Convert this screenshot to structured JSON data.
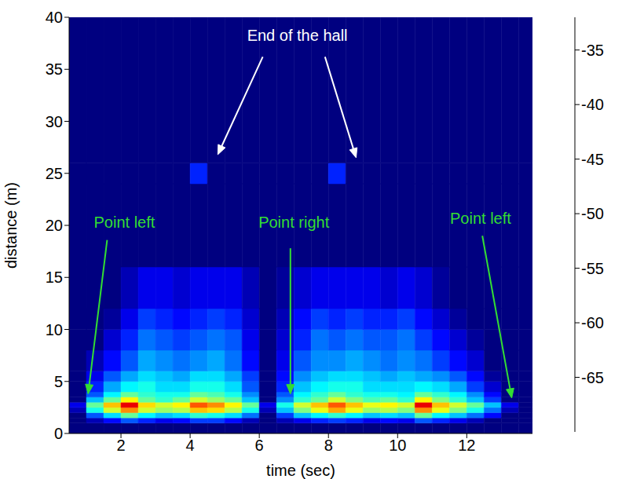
{
  "chart_data": {
    "type": "heatmap",
    "x_label": "time (sec)",
    "y_label": "distance (m)",
    "xlim": [
      0.5,
      13.9
    ],
    "xticks": [
      2,
      4,
      6,
      8,
      10,
      12
    ],
    "ylim": [
      0,
      40
    ],
    "yticks": [
      0,
      5,
      10,
      15,
      20,
      25,
      30,
      35,
      40
    ],
    "time_edges": [
      0.5,
      1,
      1.5,
      2,
      2.5,
      3,
      3.5,
      4,
      4.5,
      5,
      5.5,
      6,
      6.5,
      7,
      7.5,
      8,
      8.5,
      9,
      9.5,
      10,
      10.5,
      11,
      11.5,
      12,
      12.5,
      13,
      13.5,
      14
    ],
    "distance_edges": [
      0,
      1,
      1.5,
      2,
      2.5,
      3,
      3.5,
      4,
      5,
      6,
      8,
      10,
      12,
      16,
      24,
      26,
      40
    ],
    "cells": [
      [
        -70,
        -70,
        -70,
        -70,
        -70,
        -70,
        -70,
        -70,
        -70,
        -70,
        -70,
        -70,
        -70,
        -70,
        -70,
        -70,
        -70,
        -70,
        -70,
        -70,
        -70,
        -70,
        -70,
        -70,
        -70,
        -70,
        -70
      ],
      [
        -70,
        -68,
        -65,
        -62,
        -64,
        -66,
        -65,
        -63,
        -63,
        -65,
        -68,
        -70,
        -68,
        -66,
        -64,
        -63,
        -64,
        -66,
        -65,
        -66,
        -62,
        -64,
        -66,
        -68,
        -70,
        -70,
        -70
      ],
      [
        -70,
        -62,
        -57,
        -52,
        -56,
        -58,
        -57,
        -54,
        -55,
        -57,
        -61,
        -70,
        -63,
        -58,
        -56,
        -54,
        -56,
        -58,
        -57,
        -58,
        -52,
        -56,
        -58,
        -61,
        -65,
        -70,
        -70
      ],
      [
        -68,
        -55,
        -48,
        -42,
        -48,
        -50,
        -49,
        -44,
        -45,
        -49,
        -55,
        -68,
        -58,
        -51,
        -47,
        -43,
        -47,
        -50,
        -49,
        -51,
        -42,
        -47,
        -51,
        -55,
        -61,
        -68,
        -70
      ],
      [
        -66,
        -52,
        -44,
        -36,
        -45,
        -48,
        -46,
        -40,
        -42,
        -46,
        -52,
        -66,
        -55,
        -48,
        -44,
        -40,
        -44,
        -47,
        -46,
        -48,
        -36,
        -44,
        -48,
        -52,
        -58,
        -66,
        -70
      ],
      [
        -70,
        -58,
        -52,
        -46,
        -52,
        -54,
        -52,
        -48,
        -50,
        -52,
        -58,
        -70,
        -60,
        -54,
        -52,
        -48,
        -51,
        -53,
        -52,
        -54,
        -46,
        -51,
        -54,
        -58,
        -63,
        -70,
        -70
      ],
      [
        -70,
        -62,
        -56,
        -52,
        -54,
        -55,
        -55,
        -52,
        -53,
        -55,
        -60,
        -70,
        -62,
        -56,
        -54,
        -52,
        -54,
        -55,
        -55,
        -56,
        -52,
        -54,
        -56,
        -60,
        -65,
        -70,
        -70
      ],
      [
        -70,
        -64,
        -59,
        -56,
        -55,
        -57,
        -57,
        -55,
        -55,
        -57,
        -62,
        -70,
        -64,
        -58,
        -56,
        -55,
        -55,
        -57,
        -57,
        -57,
        -56,
        -57,
        -59,
        -63,
        -67,
        -70,
        -70
      ],
      [
        -70,
        -66,
        -62,
        -59,
        -57,
        -58,
        -59,
        -57,
        -57,
        -59,
        -63,
        -70,
        -65,
        -60,
        -58,
        -57,
        -57,
        -58,
        -59,
        -58,
        -59,
        -60,
        -62,
        -65,
        -69,
        -70,
        -70
      ],
      [
        -70,
        -68,
        -65,
        -62,
        -59,
        -60,
        -61,
        -60,
        -59,
        -61,
        -65,
        -70,
        -66,
        -62,
        -60,
        -60,
        -59,
        -60,
        -61,
        -60,
        -61,
        -63,
        -65,
        -67,
        -70,
        -70,
        -70
      ],
      [
        -70,
        -70,
        -67,
        -64,
        -61,
        -62,
        -63,
        -62,
        -61,
        -62,
        -66,
        -70,
        -67,
        -64,
        -61,
        -62,
        -61,
        -62,
        -62,
        -61,
        -63,
        -65,
        -67,
        -69,
        -70,
        -70,
        -70
      ],
      [
        -70,
        -70,
        -69,
        -66,
        -63,
        -64,
        -65,
        -64,
        -63,
        -64,
        -67,
        -70,
        -68,
        -65,
        -63,
        -64,
        -63,
        -64,
        -64,
        -63,
        -65,
        -67,
        -69,
        -70,
        -70,
        -70,
        -70
      ],
      [
        -70,
        -70,
        -70,
        -68,
        -66,
        -66,
        -67,
        -66,
        -66,
        -66,
        -68,
        -70,
        -69,
        -67,
        -66,
        -66,
        -66,
        -66,
        -67,
        -66,
        -67,
        -69,
        -70,
        -70,
        -70,
        -70,
        -70
      ],
      [
        -70,
        -70,
        -70,
        -70,
        -70,
        -70,
        -70,
        -70,
        -70,
        -70,
        -70,
        -70,
        -70,
        -70,
        -70,
        -70,
        -70,
        -70,
        -70,
        -70,
        -70,
        -70,
        -70,
        -70,
        -70,
        -70,
        -70
      ],
      [
        -70,
        -70,
        -70,
        -70,
        -70,
        -70,
        -70,
        -64,
        -70,
        -70,
        -70,
        -70,
        -70,
        -70,
        -70,
        -64,
        -70,
        -70,
        -70,
        -70,
        -70,
        -70,
        -70,
        -70,
        -70,
        -70,
        -70
      ],
      [
        -70,
        -70,
        -70,
        -70,
        -70,
        -70,
        -70,
        -70,
        -70,
        -70,
        -70,
        -70,
        -70,
        -70,
        -70,
        -70,
        -70,
        -70,
        -70,
        -70,
        -70,
        -70,
        -70,
        -70,
        -70,
        -70,
        -70
      ]
    ],
    "colorbar": {
      "range": [
        -70,
        -32
      ],
      "ticks": [
        -65,
        -60,
        -55,
        -50,
        -45,
        -40,
        -35
      ]
    },
    "annotations": [
      {
        "text": "End of the hall",
        "color": "#ffffff",
        "x": 7.1,
        "y": 38.3,
        "arrows": [
          [
            6.1,
            36.2,
            4.8,
            26.8
          ],
          [
            7.9,
            36.2,
            8.8,
            26.5
          ]
        ]
      },
      {
        "text": "Point left",
        "color": "#33dd33",
        "x": 2.1,
        "y": 20.3,
        "arrows": [
          [
            1.6,
            18.6,
            1.05,
            3.8
          ]
        ]
      },
      {
        "text": "Point right",
        "color": "#33dd33",
        "x": 7.0,
        "y": 20.3,
        "arrows": [
          [
            6.9,
            17.8,
            6.9,
            3.8
          ]
        ]
      },
      {
        "text": "Point left",
        "color": "#33dd33",
        "x": 12.4,
        "y": 20.7,
        "arrows": [
          [
            12.45,
            19.0,
            13.3,
            3.4
          ]
        ]
      }
    ]
  }
}
